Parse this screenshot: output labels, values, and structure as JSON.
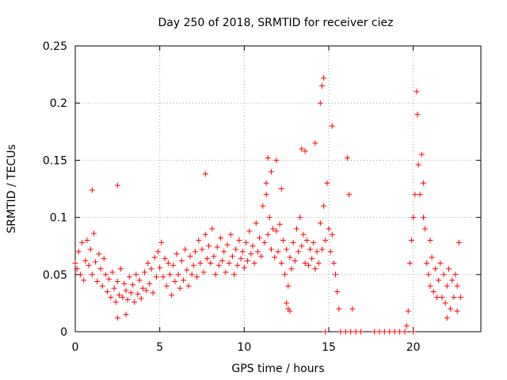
{
  "chart_data": {
    "type": "scatter",
    "title": "Day 250 of 2018, SRMTID for receiver ciez",
    "xlabel": "GPS time / hours",
    "ylabel": "SRMTID / TECUs",
    "xlim": [
      0,
      24
    ],
    "ylim": [
      0,
      0.25
    ],
    "xticks": [
      0,
      5,
      10,
      15,
      20
    ],
    "xtick_labels": [
      "0",
      "5",
      "10",
      "15",
      "20"
    ],
    "yticks": [
      0,
      0.05,
      0.1,
      0.15,
      0.2,
      0.25
    ],
    "ytick_labels": [
      "0",
      "0.05",
      "0.1",
      "0.15",
      "0.2",
      "0.25"
    ],
    "grid": true,
    "marker": "plus",
    "color": "#ff0000",
    "series": [
      {
        "points": [
          [
            0.0,
            0.06
          ],
          [
            0.1,
            0.055
          ],
          [
            0.2,
            0.07
          ],
          [
            0.3,
            0.05
          ],
          [
            0.4,
            0.078
          ],
          [
            0.5,
            0.045
          ],
          [
            0.6,
            0.062
          ],
          [
            0.7,
            0.08
          ],
          [
            0.8,
            0.058
          ],
          [
            0.9,
            0.072
          ],
          [
            1.0,
            0.05
          ],
          [
            1.1,
            0.086
          ],
          [
            1.2,
            0.061
          ],
          [
            1.3,
            0.044
          ],
          [
            1.4,
            0.068
          ],
          [
            1.5,
            0.055
          ],
          [
            1.6,
            0.04
          ],
          [
            1.7,
            0.064
          ],
          [
            1.8,
            0.05
          ],
          [
            1.9,
            0.035
          ],
          [
            2.0,
            0.046
          ],
          [
            2.1,
            0.03
          ],
          [
            2.2,
            0.052
          ],
          [
            2.3,
            0.038
          ],
          [
            2.4,
            0.026
          ],
          [
            2.5,
            0.044
          ],
          [
            2.6,
            0.032
          ],
          [
            2.7,
            0.055
          ],
          [
            2.8,
            0.03
          ],
          [
            2.9,
            0.042
          ],
          [
            3.0,
            0.036
          ],
          [
            3.1,
            0.028
          ],
          [
            3.2,
            0.048
          ],
          [
            3.3,
            0.034
          ],
          [
            3.4,
            0.041
          ],
          [
            3.5,
            0.026
          ],
          [
            3.6,
            0.05
          ],
          [
            3.7,
            0.033
          ],
          [
            3.8,
            0.045
          ],
          [
            3.9,
            0.029
          ],
          [
            4.0,
            0.038
          ],
          [
            4.1,
            0.052
          ],
          [
            4.2,
            0.036
          ],
          [
            4.3,
            0.06
          ],
          [
            4.4,
            0.042
          ],
          [
            4.5,
            0.055
          ],
          [
            4.6,
            0.034
          ],
          [
            4.7,
            0.065
          ],
          [
            4.8,
            0.048
          ],
          [
            4.9,
            0.07
          ],
          [
            5.0,
            0.056
          ],
          [
            5.1,
            0.078
          ],
          [
            5.2,
            0.048
          ],
          [
            5.3,
            0.064
          ],
          [
            5.4,
            0.04
          ],
          [
            5.5,
            0.06
          ],
          [
            5.6,
            0.05
          ],
          [
            5.7,
            0.032
          ],
          [
            5.8,
            0.058
          ],
          [
            5.9,
            0.044
          ],
          [
            6.0,
            0.068
          ],
          [
            6.1,
            0.05
          ],
          [
            6.2,
            0.038
          ],
          [
            6.3,
            0.062
          ],
          [
            6.4,
            0.045
          ],
          [
            6.5,
            0.072
          ],
          [
            6.6,
            0.054
          ],
          [
            6.7,
            0.04
          ],
          [
            6.8,
            0.066
          ],
          [
            6.9,
            0.05
          ],
          [
            7.0,
            0.058
          ],
          [
            7.1,
            0.07
          ],
          [
            7.2,
            0.048
          ],
          [
            7.3,
            0.08
          ],
          [
            7.4,
            0.06
          ],
          [
            7.5,
            0.072
          ],
          [
            7.6,
            0.052
          ],
          [
            7.7,
            0.085
          ],
          [
            7.8,
            0.064
          ],
          [
            7.9,
            0.075
          ],
          [
            8.0,
            0.06
          ],
          [
            8.1,
            0.09
          ],
          [
            8.2,
            0.066
          ],
          [
            8.3,
            0.05
          ],
          [
            8.4,
            0.074
          ],
          [
            8.5,
            0.058
          ],
          [
            8.6,
            0.082
          ],
          [
            8.7,
            0.062
          ],
          [
            8.8,
            0.07
          ],
          [
            8.9,
            0.052
          ],
          [
            9.0,
            0.076
          ],
          [
            9.1,
            0.06
          ],
          [
            9.2,
            0.085
          ],
          [
            9.3,
            0.066
          ],
          [
            9.4,
            0.05
          ],
          [
            9.5,
            0.072
          ],
          [
            9.6,
            0.058
          ],
          [
            9.7,
            0.08
          ],
          [
            9.8,
            0.064
          ],
          [
            9.9,
            0.07
          ],
          [
            10.0,
            0.056
          ],
          [
            10.1,
            0.078
          ],
          [
            10.2,
            0.062
          ],
          [
            10.3,
            0.088
          ],
          [
            10.4,
            0.068
          ],
          [
            10.5,
            0.075
          ],
          [
            10.6,
            0.06
          ],
          [
            10.7,
            0.095
          ],
          [
            10.8,
            0.07
          ],
          [
            10.9,
            0.082
          ],
          [
            11.0,
            0.066
          ],
          [
            11.1,
            0.11
          ],
          [
            11.2,
            0.078
          ],
          [
            11.3,
            0.12
          ],
          [
            11.4,
            0.085
          ],
          [
            11.5,
            0.1
          ],
          [
            11.6,
            0.072
          ],
          [
            11.7,
            0.09
          ],
          [
            11.8,
            0.065
          ],
          [
            11.9,
            0.088
          ],
          [
            12.0,
            0.07
          ],
          [
            12.1,
            0.094
          ],
          [
            12.2,
            0.06
          ],
          [
            12.3,
            0.08
          ],
          [
            12.4,
            0.05
          ],
          [
            12.5,
            0.072
          ],
          [
            12.6,
            0.04
          ],
          [
            12.7,
            0.065
          ],
          [
            12.8,
            0.055
          ],
          [
            12.9,
            0.078
          ],
          [
            13.0,
            0.062
          ],
          [
            13.1,
            0.09
          ],
          [
            13.2,
            0.07
          ],
          [
            13.3,
            0.1
          ],
          [
            13.4,
            0.075
          ],
          [
            13.5,
            0.085
          ],
          [
            13.6,
            0.06
          ],
          [
            13.7,
            0.08
          ],
          [
            13.8,
            0.058
          ],
          [
            13.9,
            0.072
          ],
          [
            14.0,
            0.064
          ],
          [
            14.1,
            0.078
          ],
          [
            14.2,
            0.055
          ],
          [
            14.3,
            0.07
          ],
          [
            14.4,
            0.06
          ],
          [
            14.5,
            0.095
          ],
          [
            14.6,
            0.072
          ],
          [
            14.7,
            0.11
          ],
          [
            14.8,
            0.08
          ],
          [
            14.9,
            0.13
          ],
          [
            15.0,
            0.09
          ],
          [
            15.1,
            0.07
          ],
          [
            15.2,
            0.085
          ],
          [
            15.3,
            0.06
          ],
          [
            15.4,
            0.05
          ],
          [
            15.5,
            0.035
          ],
          [
            15.6,
            0.02
          ],
          [
            11.4,
            0.152
          ],
          [
            11.6,
            0.14
          ],
          [
            11.9,
            0.15
          ],
          [
            12.2,
            0.125
          ],
          [
            13.4,
            0.16
          ],
          [
            13.6,
            0.158
          ],
          [
            14.2,
            0.165
          ],
          [
            14.5,
            0.2
          ],
          [
            14.6,
            0.215
          ],
          [
            14.7,
            0.222
          ],
          [
            15.2,
            0.18
          ],
          [
            12.5,
            0.025
          ],
          [
            12.6,
            0.02
          ],
          [
            12.7,
            0.018
          ],
          [
            2.5,
            0.012
          ],
          [
            3.0,
            0.015
          ],
          [
            7.7,
            0.138
          ],
          [
            2.5,
            0.128
          ],
          [
            1.0,
            0.124
          ],
          [
            11.3,
            0.13
          ],
          [
            16.1,
            0.152
          ],
          [
            16.2,
            0.12
          ],
          [
            16.4,
            0.02
          ],
          [
            15.7,
            0.0
          ],
          [
            16.0,
            0.0
          ],
          [
            16.3,
            0.0
          ],
          [
            16.6,
            0.0
          ],
          [
            16.9,
            0.0
          ],
          [
            17.7,
            0.0
          ],
          [
            18.0,
            0.0
          ],
          [
            18.3,
            0.0
          ],
          [
            18.6,
            0.0
          ],
          [
            18.9,
            0.0
          ],
          [
            19.2,
            0.0
          ],
          [
            19.5,
            0.0
          ],
          [
            20.0,
            0.0
          ],
          [
            14.8,
            0.0
          ],
          [
            19.6,
            0.005
          ],
          [
            19.7,
            0.018
          ],
          [
            19.8,
            0.06
          ],
          [
            19.9,
            0.08
          ],
          [
            20.0,
            0.1
          ],
          [
            20.1,
            0.12
          ],
          [
            20.2,
            0.21
          ],
          [
            20.25,
            0.19
          ],
          [
            20.3,
            0.146
          ],
          [
            20.4,
            0.12
          ],
          [
            20.5,
            0.155
          ],
          [
            20.6,
            0.13
          ],
          [
            20.7,
            0.09
          ],
          [
            20.8,
            0.06
          ],
          [
            20.9,
            0.05
          ],
          [
            21.0,
            0.04
          ],
          [
            21.1,
            0.065
          ],
          [
            21.2,
            0.035
          ],
          [
            21.3,
            0.055
          ],
          [
            21.4,
            0.03
          ],
          [
            21.5,
            0.045
          ],
          [
            21.6,
            0.06
          ],
          [
            21.7,
            0.03
          ],
          [
            21.8,
            0.05
          ],
          [
            21.9,
            0.025
          ],
          [
            22.0,
            0.04
          ],
          [
            22.1,
            0.055
          ],
          [
            22.2,
            0.02
          ],
          [
            22.3,
            0.045
          ],
          [
            22.4,
            0.03
          ],
          [
            22.5,
            0.05
          ],
          [
            22.6,
            0.04
          ],
          [
            22.7,
            0.078
          ],
          [
            22.8,
            0.03
          ],
          [
            20.6,
            0.1
          ],
          [
            21.0,
            0.08
          ],
          [
            22.0,
            0.012
          ],
          [
            22.6,
            0.018
          ]
        ]
      }
    ]
  }
}
